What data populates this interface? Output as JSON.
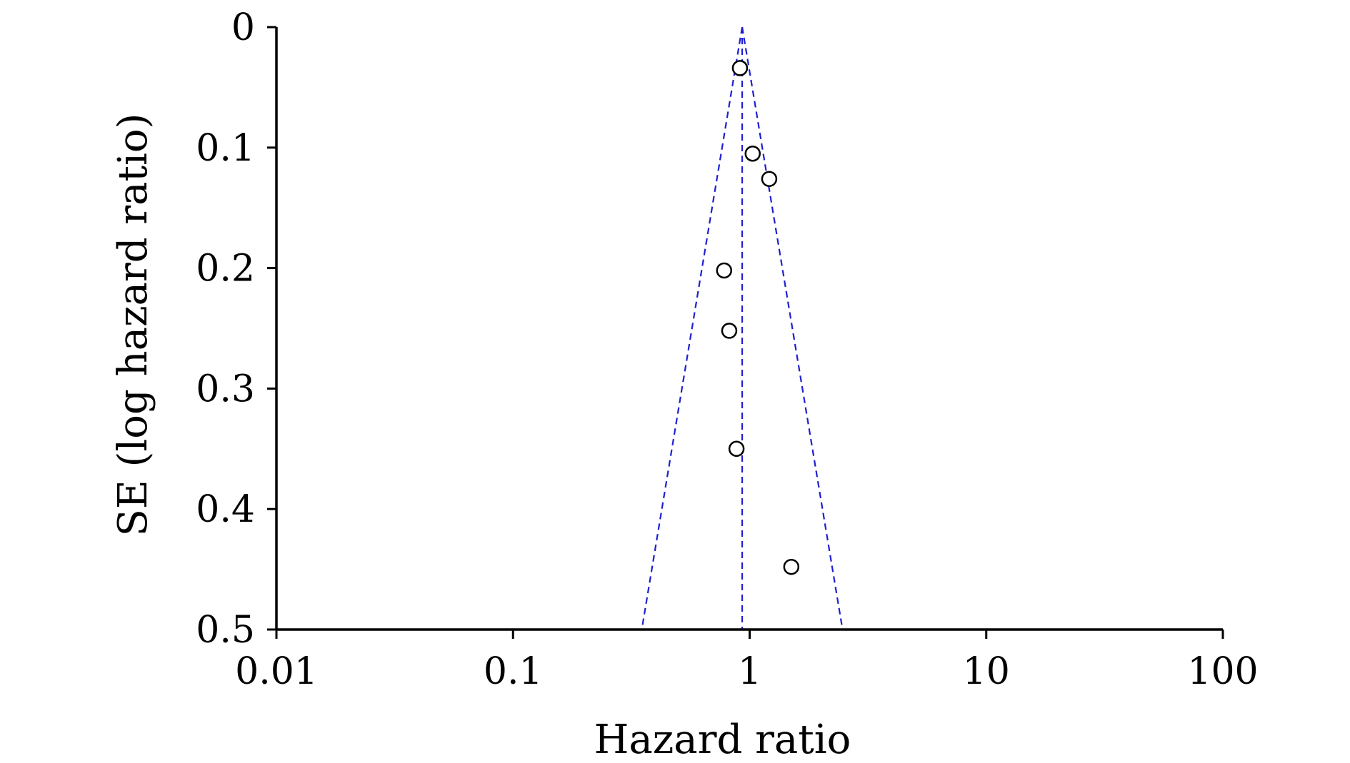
{
  "chart_data": {
    "type": "scatter",
    "title": "",
    "xlabel": "Hazard ratio",
    "ylabel": "SE (log hazard ratio)",
    "x_scale": "log",
    "xlim": [
      0.01,
      100
    ],
    "ylim": [
      0,
      0.5
    ],
    "y_inverted": true,
    "x_ticks": [
      0.01,
      0.1,
      1,
      10,
      100
    ],
    "x_tick_labels": [
      "0.01",
      "0.1",
      "1",
      "10",
      "100"
    ],
    "y_ticks": [
      0,
      0.1,
      0.2,
      0.3,
      0.4,
      0.5
    ],
    "y_tick_labels": [
      "0",
      "0.1",
      "0.2",
      "0.3",
      "0.4",
      "0.5"
    ],
    "grid": false,
    "pooled_estimate": 0.93,
    "funnel_limits": {
      "se": 0.5,
      "lower": 0.35,
      "upper": 2.47
    },
    "points": [
      {
        "x": 0.91,
        "y": 0.034
      },
      {
        "x": 1.03,
        "y": 0.105
      },
      {
        "x": 1.21,
        "y": 0.126
      },
      {
        "x": 0.78,
        "y": 0.202
      },
      {
        "x": 0.82,
        "y": 0.252
      },
      {
        "x": 0.88,
        "y": 0.35
      },
      {
        "x": 1.5,
        "y": 0.448
      }
    ],
    "colors": {
      "funnel": "#1f1fd1",
      "points": "#000000"
    }
  }
}
